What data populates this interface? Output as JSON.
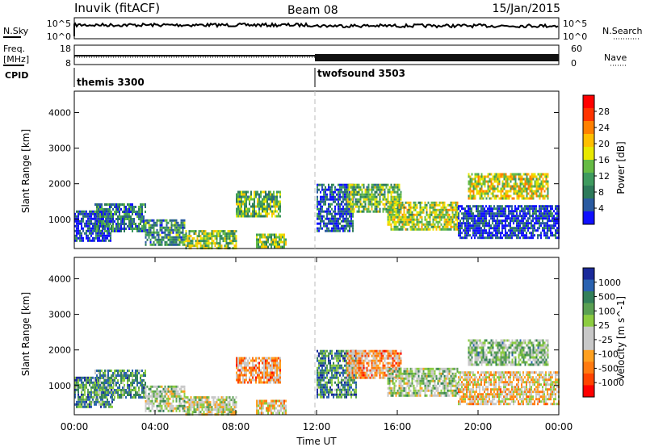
{
  "header": {
    "station": "Inuvik (fitACF)",
    "beam": "Beam 08",
    "date": "15/Jan/2015"
  },
  "strip_panels": {
    "nsky_label": "N.Sky",
    "nsearch_label": "N.Search",
    "nsky_ticks": [
      "10^5",
      "10^0"
    ],
    "nsearch_ticks": [
      "10^5",
      "10^0"
    ],
    "freq_label_1": "Freq.",
    "freq_label_2": "[MHz]",
    "freq_ticks": [
      "18",
      "8"
    ],
    "nave_label": "Nave",
    "nave_ticks": [
      "60",
      "0"
    ],
    "cpid_label": "CPID",
    "modes": [
      {
        "name": "themis 3300",
        "start_hour": 0
      },
      {
        "name": "twofsound 3503",
        "start_hour": 12
      }
    ]
  },
  "chart_data": [
    {
      "type": "heatmap",
      "panel": "power",
      "ylabel": "Slant Range [km]",
      "ylim": [
        180,
        4600
      ],
      "xlim": [
        0,
        24
      ],
      "yticks": [
        "1000",
        "2000",
        "3000",
        "4000"
      ],
      "colorbar_label": "Power [dB]",
      "colorbar_ticks": [
        "28",
        "24",
        "20",
        "16",
        "12",
        "8",
        "4"
      ],
      "colorbar_colors": [
        "#ff0000",
        "#ff3300",
        "#ff8000",
        "#ffbf00",
        "#e8e800",
        "#66bb44",
        "#3e9a5e",
        "#2d7a5a",
        "#2a5aa0",
        "#1010ff"
      ],
      "echo_bands": [
        {
          "t0": 0.0,
          "t1": 1.8,
          "r0": 420,
          "r1": 1250,
          "level": 0.9
        },
        {
          "t0": 1.0,
          "t1": 3.5,
          "r0": 650,
          "r1": 1450,
          "level": 0.75
        },
        {
          "t0": 3.5,
          "t1": 5.5,
          "r0": 280,
          "r1": 1000,
          "level": 0.7
        },
        {
          "t0": 5.5,
          "t1": 8.0,
          "r0": 200,
          "r1": 700,
          "level": 0.55
        },
        {
          "t0": 8.0,
          "t1": 10.2,
          "r0": 1100,
          "r1": 1800,
          "level": 0.6
        },
        {
          "t0": 9.0,
          "t1": 10.5,
          "r0": 220,
          "r1": 600,
          "level": 0.55
        },
        {
          "t0": 12.0,
          "t1": 13.8,
          "r0": 700,
          "r1": 2000,
          "level": 0.85
        },
        {
          "t0": 13.5,
          "t1": 16.2,
          "r0": 1200,
          "r1": 2000,
          "level": 0.6
        },
        {
          "t0": 15.5,
          "t1": 19.0,
          "r0": 700,
          "r1": 1500,
          "level": 0.5
        },
        {
          "t0": 19.0,
          "t1": 24.0,
          "r0": 500,
          "r1": 1400,
          "level": 0.9
        },
        {
          "t0": 19.5,
          "t1": 23.5,
          "r0": 1600,
          "r1": 2300,
          "level": 0.45
        }
      ]
    },
    {
      "type": "heatmap",
      "panel": "velocity",
      "ylabel": "Slant Range [km]",
      "xlabel": "Time UT",
      "ylim": [
        180,
        4600
      ],
      "xlim": [
        0,
        24
      ],
      "yticks": [
        "1000",
        "2000",
        "3000",
        "4000"
      ],
      "xticks": [
        "00:00",
        "04:00",
        "08:00",
        "12:00",
        "16:00",
        "20:00",
        "00:00"
      ],
      "colorbar_label": "Velocity [m s^-1]",
      "colorbar_ticks": [
        "1000",
        "500",
        "100",
        "25",
        "-25",
        "-100",
        "-500",
        "-1000"
      ],
      "colorbar_colors": [
        "#1a2a9a",
        "#2a62b0",
        "#33805a",
        "#5aa052",
        "#8ccc40",
        "#c8c8c8",
        "#c8c8c8",
        "#ffa020",
        "#ff7a10",
        "#ff4400",
        "#ff0000"
      ],
      "echo_bands": [
        {
          "t0": 0.0,
          "t1": 2.0,
          "r0": 420,
          "r1": 1250,
          "level": 0.25
        },
        {
          "t0": 1.0,
          "t1": 3.5,
          "r0": 650,
          "r1": 1450,
          "level": 0.3
        },
        {
          "t0": 3.5,
          "t1": 5.5,
          "r0": 280,
          "r1": 1000,
          "level": 0.45
        },
        {
          "t0": 5.5,
          "t1": 8.0,
          "r0": 200,
          "r1": 700,
          "level": 0.5
        },
        {
          "t0": 8.0,
          "t1": 10.2,
          "r0": 1100,
          "r1": 1800,
          "level": 0.7
        },
        {
          "t0": 9.0,
          "t1": 10.5,
          "r0": 220,
          "r1": 600,
          "level": 0.6
        },
        {
          "t0": 12.0,
          "t1": 14.0,
          "r0": 700,
          "r1": 2000,
          "level": 0.25
        },
        {
          "t0": 13.5,
          "t1": 16.2,
          "r0": 1200,
          "r1": 2000,
          "level": 0.7
        },
        {
          "t0": 15.5,
          "t1": 19.0,
          "r0": 700,
          "r1": 1500,
          "level": 0.45
        },
        {
          "t0": 19.0,
          "t1": 24.0,
          "r0": 500,
          "r1": 1400,
          "level": 0.6
        },
        {
          "t0": 19.5,
          "t1": 23.5,
          "r0": 1600,
          "r1": 2300,
          "level": 0.4
        }
      ]
    }
  ]
}
